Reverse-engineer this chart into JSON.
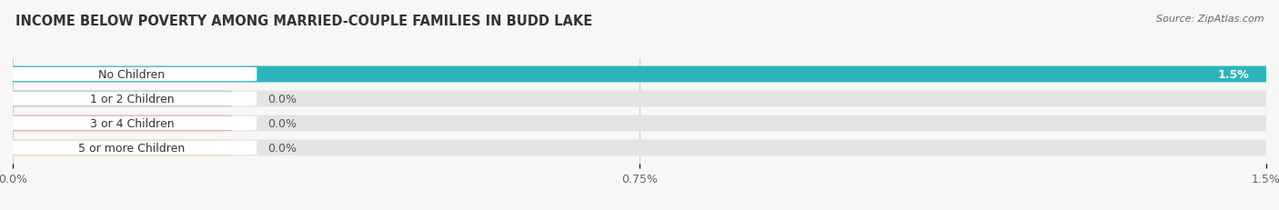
{
  "title": "INCOME BELOW POVERTY AMONG MARRIED-COUPLE FAMILIES IN BUDD LAKE",
  "source": "Source: ZipAtlas.com",
  "categories": [
    "No Children",
    "1 or 2 Children",
    "3 or 4 Children",
    "5 or more Children"
  ],
  "values": [
    1.5,
    0.0,
    0.0,
    0.0
  ],
  "bar_colors": [
    "#2bb5ba",
    "#9999cc",
    "#f07090",
    "#f5c88a"
  ],
  "xlim": [
    0,
    1.5
  ],
  "xticks": [
    0.0,
    0.75,
    1.5
  ],
  "xtick_labels": [
    "0.0%",
    "0.75%",
    "1.5%"
  ],
  "bar_height": 0.62,
  "bg_color": "#f7f7f7",
  "bar_bg_color": "#e4e4e4",
  "title_fontsize": 10.5,
  "label_fontsize": 9,
  "value_fontsize": 9,
  "source_fontsize": 8
}
